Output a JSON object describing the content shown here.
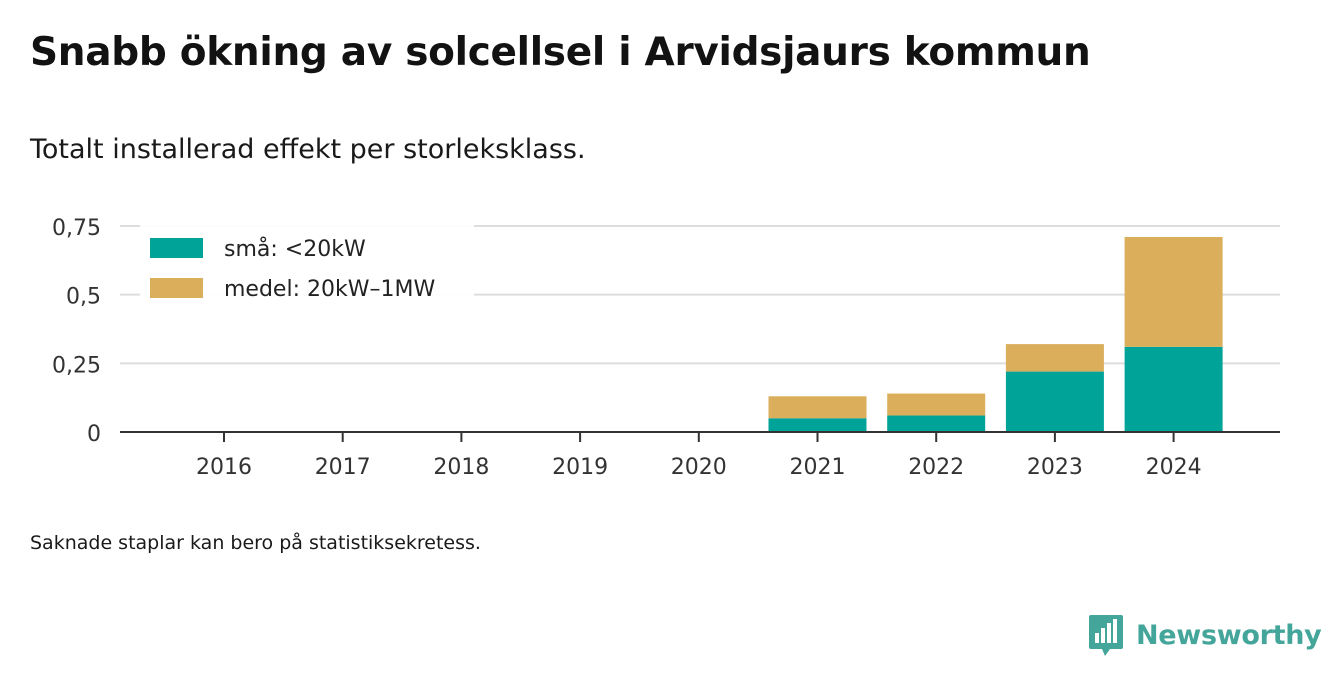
{
  "title": "Snabb ökning av solcellsel i Arvidsjaurs kommun",
  "subtitle": "Totalt installerad effekt per storleksklass.",
  "note": "Saknade staplar kan bero på statistiksekretess.",
  "brand": {
    "name": "Newsworthy",
    "icon": "newsworthy-logo-icon",
    "color": "#44a59a"
  },
  "chart_data": {
    "type": "bar",
    "stacked": true,
    "categories": [
      "2016",
      "2017",
      "2018",
      "2019",
      "2020",
      "2021",
      "2022",
      "2023",
      "2024"
    ],
    "series": [
      {
        "name": "små: <20kW",
        "color": "#00a398",
        "values": [
          0,
          0,
          0,
          0,
          0,
          0.05,
          0.06,
          0.22,
          0.31
        ]
      },
      {
        "name": "medel: 20kW–1MW",
        "color": "#dbae5b",
        "values": [
          0,
          0,
          0,
          0,
          0,
          0.08,
          0.08,
          0.1,
          0.4
        ]
      }
    ],
    "yticks": [
      0,
      0.25,
      0.5,
      0.75
    ],
    "ytick_labels": [
      "0",
      "0,25",
      "0,5",
      "0,75"
    ],
    "ylim": [
      0,
      0.75
    ],
    "grid": true,
    "legend_position": "top-left"
  }
}
